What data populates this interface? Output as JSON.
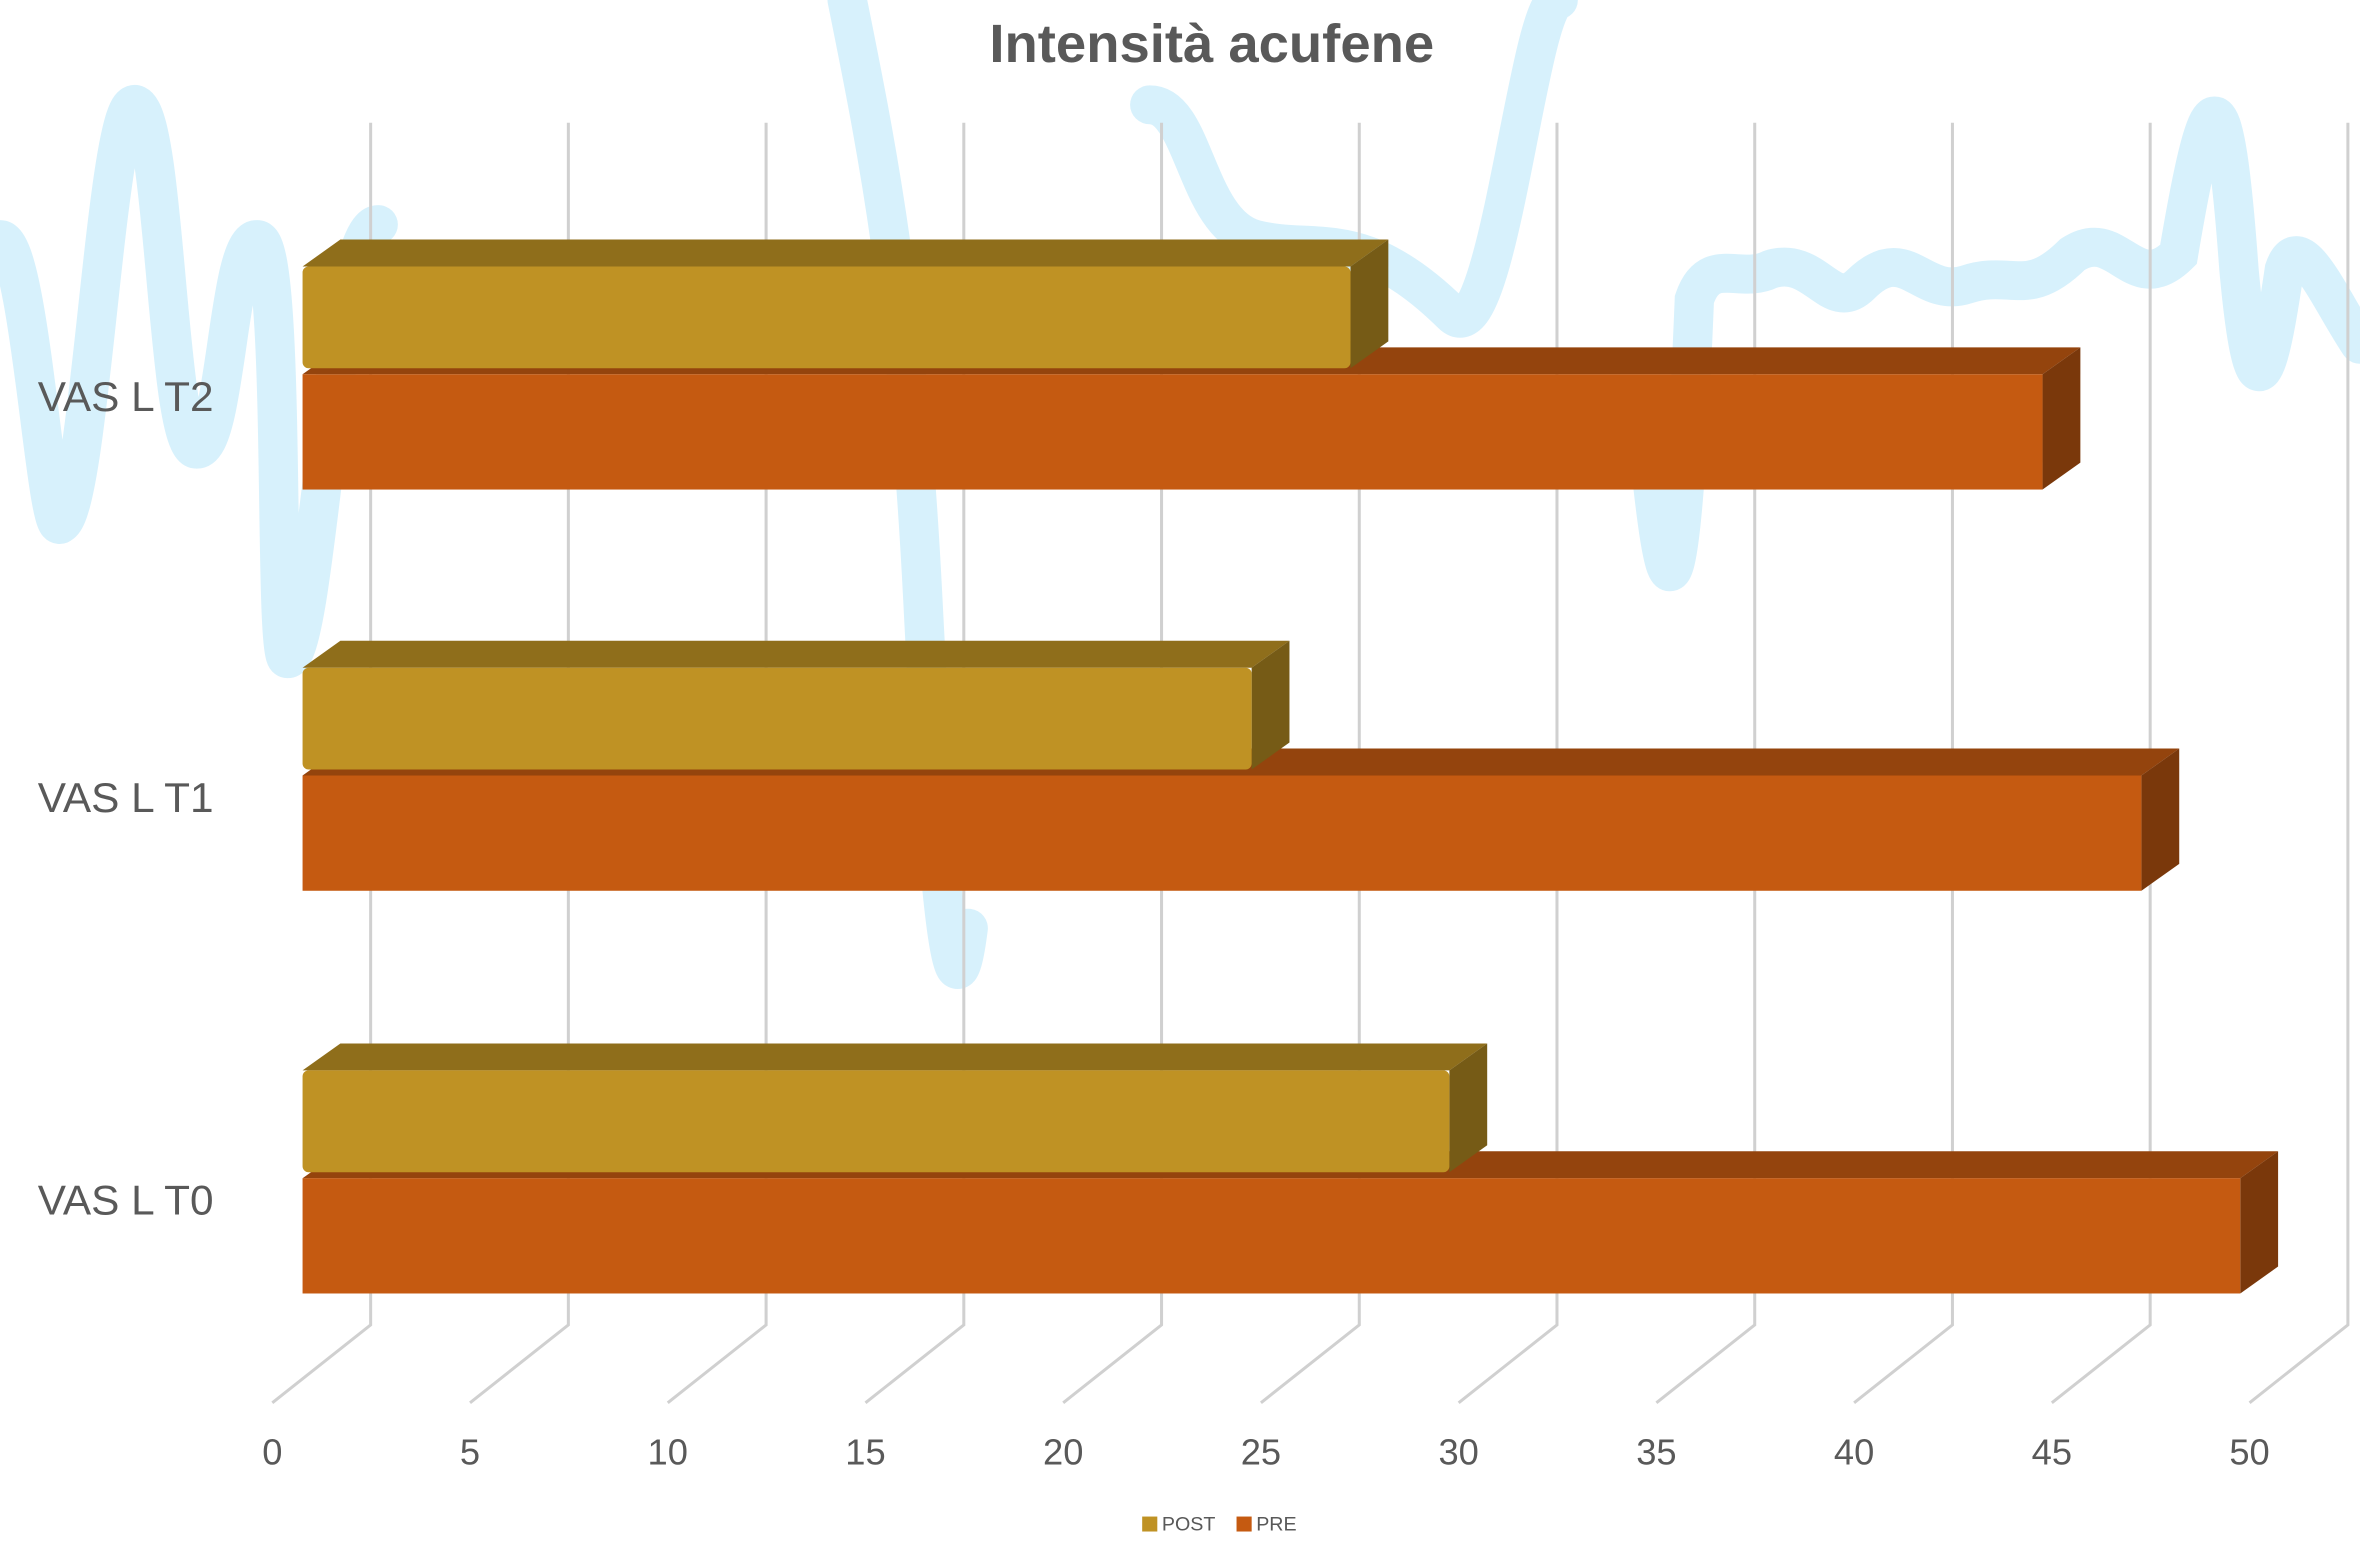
{
  "chart_data": {
    "type": "bar3d-horizontal",
    "title": "Intensità acufene",
    "categories": [
      "VAS L T0",
      "VAS L T1",
      "VAS L T2"
    ],
    "series": [
      {
        "name": "POST",
        "color": "#bf9224",
        "values": [
          29,
          24,
          26.5
        ]
      },
      {
        "name": "PRE",
        "color": "#c55a11",
        "values": [
          49,
          46.5,
          44
        ]
      }
    ],
    "xlim": [
      0,
      50
    ],
    "xticks": [
      0,
      5,
      10,
      15,
      20,
      25,
      30,
      35,
      40,
      45,
      50
    ],
    "grid": true,
    "legend": "bottom"
  }
}
